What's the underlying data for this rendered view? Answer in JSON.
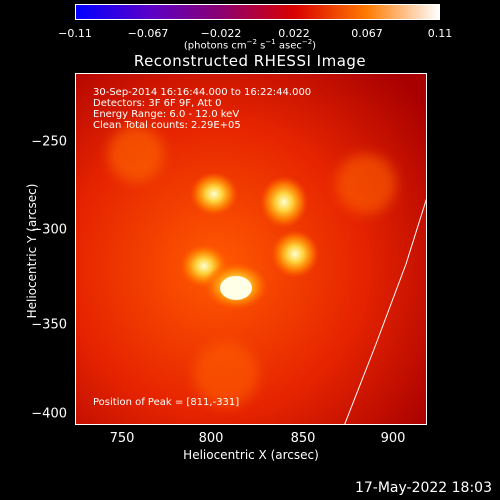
{
  "colorbar": {
    "tick_labels": [
      "−0.11",
      "−0.067",
      "−0.022",
      "0.022",
      "0.067",
      "0.11"
    ],
    "units_prefix": "(photons cm",
    "units_sup1": "−2",
    "units_mid1": " s",
    "units_sup2": "−1",
    "units_mid2": " asec",
    "units_sup3": "−2",
    "units_suffix": ")",
    "colors": [
      "#0000ff",
      "#5a00c8",
      "#8b0070",
      "#d80000",
      "#ff7a00",
      "#ffffff"
    ]
  },
  "title": "Reconstructed RHESSI Image",
  "info": {
    "time_range": "30-Sep-2014 16:16:44.000 to 16:22:44.000",
    "detectors": "Detectors: 3F 6F 9F, Att 0",
    "energy": "Energy Range: 6.0 - 12.0 keV",
    "clean": "Clean    Total counts: 2.29E+05",
    "peak": "Position of Peak = [811,-331]"
  },
  "axes": {
    "x_title": "Heliocentric X (arcsec)",
    "y_title": "Heliocentric Y (arcsec)",
    "x_ticks": [
      "750",
      "800",
      "850",
      "900"
    ],
    "y_ticks": [
      "−250",
      "−300",
      "−350",
      "−400"
    ]
  },
  "footer": {
    "timestamp": "17-May-2022 18:03"
  }
}
